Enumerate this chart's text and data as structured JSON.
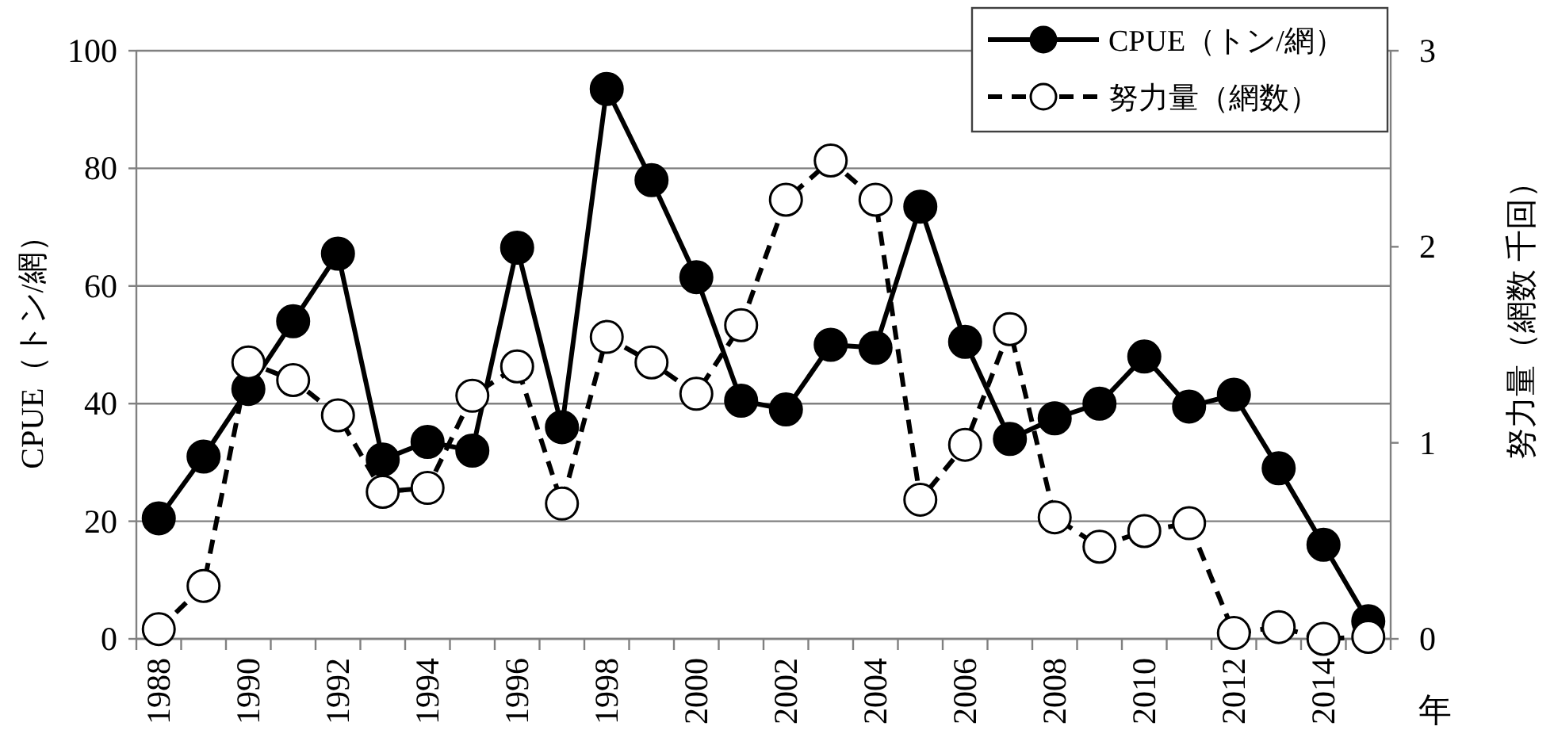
{
  "chart_data": {
    "type": "line",
    "categories": [
      "1988",
      null,
      "1990",
      null,
      "1992",
      null,
      "1994",
      null,
      "1996",
      null,
      "1998",
      null,
      "2000",
      null,
      "2002",
      null,
      "2004",
      null,
      "2006",
      null,
      "2008",
      null,
      "2010",
      null,
      "2012",
      null,
      "2014",
      null
    ],
    "series": [
      {
        "name": "CPUE（トン/網）",
        "color": "#000000",
        "line_style": "solid",
        "values": [
          20.5,
          31,
          42.5,
          54,
          65.5,
          30.5,
          33.5,
          32,
          66.5,
          36,
          93.5,
          78,
          61.5,
          40.5,
          39,
          50,
          49.5,
          73.5,
          50.5,
          34,
          37.5,
          40,
          48,
          39.5,
          41.5,
          29,
          16,
          3
        ]
      },
      {
        "name": "努力量（網数）",
        "color": "#000000",
        "line_style": "dashed",
        "axis": "y2",
        "values": [
          0.05,
          0.27,
          1.41,
          1.32,
          1.14,
          0.75,
          0.77,
          1.24,
          1.39,
          0.69,
          1.54,
          1.41,
          1.25,
          1.6,
          2.24,
          2.44,
          2.24,
          0.71,
          0.99,
          1.58,
          0.62,
          0.47,
          0.55,
          0.59,
          0.03,
          0.06,
          0,
          0.01
        ]
      }
    ],
    "xlabel": "年",
    "ylabel": "CPUE（トン/網）",
    "y2label": "努力量（網数 千回）",
    "ylim": [
      0,
      100
    ],
    "yticks": [
      0,
      20,
      40,
      60,
      80,
      100
    ],
    "y2lim": [
      0,
      3
    ],
    "y2ticks": [
      0,
      1,
      2,
      3
    ],
    "grid": "y",
    "legend": "top right",
    "marker": "circle"
  }
}
